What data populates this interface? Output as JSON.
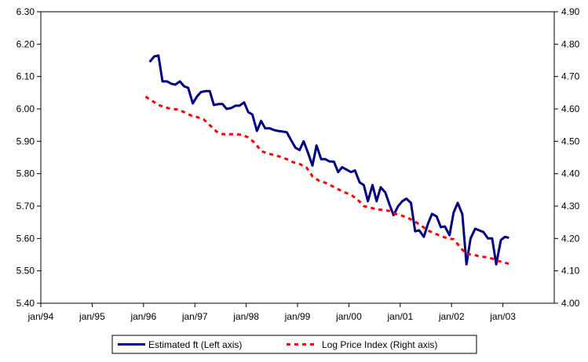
{
  "chart_data": {
    "type": "line",
    "title": "",
    "xlabel": "",
    "x_ticks": [
      "jan/94",
      "jan/95",
      "jan/96",
      "jan/97",
      "jan/98",
      "jan/99",
      "jan/00",
      "jan/01",
      "jan/02",
      "jan/03"
    ],
    "xlim": [
      1994.0,
      2004.0
    ],
    "left_axis": {
      "ylim": [
        5.4,
        6.3
      ],
      "ticks": [
        "5.40",
        "5.50",
        "5.60",
        "5.70",
        "5.80",
        "5.90",
        "6.00",
        "6.10",
        "6.20",
        "6.30"
      ]
    },
    "right_axis": {
      "ylim": [
        4.0,
        4.9
      ],
      "ticks": [
        "4.00",
        "4.10",
        "4.20",
        "4.30",
        "4.40",
        "4.50",
        "4.60",
        "4.70",
        "4.80",
        "4.90"
      ]
    },
    "grid": false,
    "legend_position": "bottom-center",
    "series": [
      {
        "name": "Estimated ft (Left axis)",
        "axis": "left",
        "style": "solid",
        "color": "#000080",
        "x": [
          1996.12,
          1996.21,
          1996.29,
          1996.37,
          1996.46,
          1996.54,
          1996.62,
          1996.71,
          1996.79,
          1996.87,
          1996.96,
          1997.04,
          1997.12,
          1997.21,
          1997.29,
          1997.37,
          1997.46,
          1997.54,
          1997.62,
          1997.71,
          1997.79,
          1997.87,
          1997.96,
          1998.04,
          1998.12,
          1998.21,
          1998.29,
          1998.37,
          1998.46,
          1998.54,
          1998.62,
          1998.71,
          1998.79,
          1998.87,
          1998.96,
          1999.04,
          1999.12,
          1999.21,
          1999.29,
          1999.37,
          1999.46,
          1999.54,
          1999.62,
          1999.71,
          1999.79,
          1999.87,
          1999.96,
          2000.04,
          2000.12,
          2000.21,
          2000.29,
          2000.37,
          2000.46,
          2000.54,
          2000.62,
          2000.71,
          2000.79,
          2000.87,
          2000.96,
          2001.04,
          2001.12,
          2001.21,
          2001.29,
          2001.37,
          2001.46,
          2001.54,
          2001.62,
          2001.71,
          2001.79,
          2001.87,
          2001.96,
          2002.04,
          2002.12,
          2002.21,
          2002.29,
          2002.37,
          2002.46,
          2002.54,
          2002.62,
          2002.71,
          2002.79,
          2002.87,
          2002.96,
          2003.04,
          2003.12
        ],
        "values": [
          6.145,
          6.162,
          6.165,
          6.085,
          6.085,
          6.078,
          6.075,
          6.085,
          6.07,
          6.065,
          6.017,
          6.038,
          6.052,
          6.055,
          6.055,
          6.012,
          6.015,
          6.015,
          6.0,
          6.003,
          6.01,
          6.01,
          6.02,
          5.99,
          5.983,
          5.932,
          5.963,
          5.94,
          5.94,
          5.935,
          5.932,
          5.93,
          5.928,
          5.905,
          5.88,
          5.873,
          5.9,
          5.862,
          5.825,
          5.887,
          5.845,
          5.845,
          5.838,
          5.837,
          5.805,
          5.82,
          5.812,
          5.805,
          5.81,
          5.773,
          5.765,
          5.715,
          5.765,
          5.715,
          5.758,
          5.742,
          5.705,
          5.672,
          5.7,
          5.715,
          5.723,
          5.71,
          5.622,
          5.625,
          5.605,
          5.645,
          5.676,
          5.668,
          5.635,
          5.637,
          5.61,
          5.68,
          5.71,
          5.675,
          5.52,
          5.6,
          5.63,
          5.625,
          5.62,
          5.6,
          5.6,
          5.52,
          5.595,
          5.605,
          5.602
        ]
      },
      {
        "name": "Log Price Index (Right axis)",
        "axis": "right",
        "style": "dashed",
        "color": "#ff0000",
        "x": [
          1996.04,
          1996.17,
          1996.29,
          1996.42,
          1996.54,
          1996.67,
          1996.79,
          1996.92,
          1997.04,
          1997.17,
          1997.29,
          1997.42,
          1997.54,
          1997.67,
          1997.79,
          1997.92,
          1998.04,
          1998.17,
          1998.29,
          1998.42,
          1998.54,
          1998.67,
          1998.79,
          1998.92,
          1999.04,
          1999.17,
          1999.29,
          1999.42,
          1999.54,
          1999.67,
          1999.79,
          1999.92,
          2000.04,
          2000.17,
          2000.29,
          2000.42,
          2000.54,
          2000.67,
          2000.79,
          2000.92,
          2001.04,
          2001.17,
          2001.29,
          2001.42,
          2001.54,
          2001.67,
          2001.79,
          2001.92,
          2002.04,
          2002.17,
          2002.29,
          2002.42,
          2002.54,
          2002.67,
          2002.79,
          2002.92,
          2003.04,
          2003.12
        ],
        "values": [
          4.638,
          4.625,
          4.612,
          4.605,
          4.6,
          4.598,
          4.59,
          4.58,
          4.575,
          4.568,
          4.55,
          4.53,
          4.522,
          4.522,
          4.522,
          4.52,
          4.512,
          4.495,
          4.47,
          4.462,
          4.458,
          4.452,
          4.445,
          4.435,
          4.43,
          4.42,
          4.392,
          4.378,
          4.372,
          4.362,
          4.352,
          4.342,
          4.335,
          4.32,
          4.3,
          4.295,
          4.29,
          4.288,
          4.285,
          4.275,
          4.27,
          4.262,
          4.252,
          4.238,
          4.225,
          4.215,
          4.208,
          4.2,
          4.198,
          4.172,
          4.152,
          4.15,
          4.145,
          4.142,
          4.138,
          4.13,
          4.125,
          4.122
        ]
      }
    ]
  }
}
